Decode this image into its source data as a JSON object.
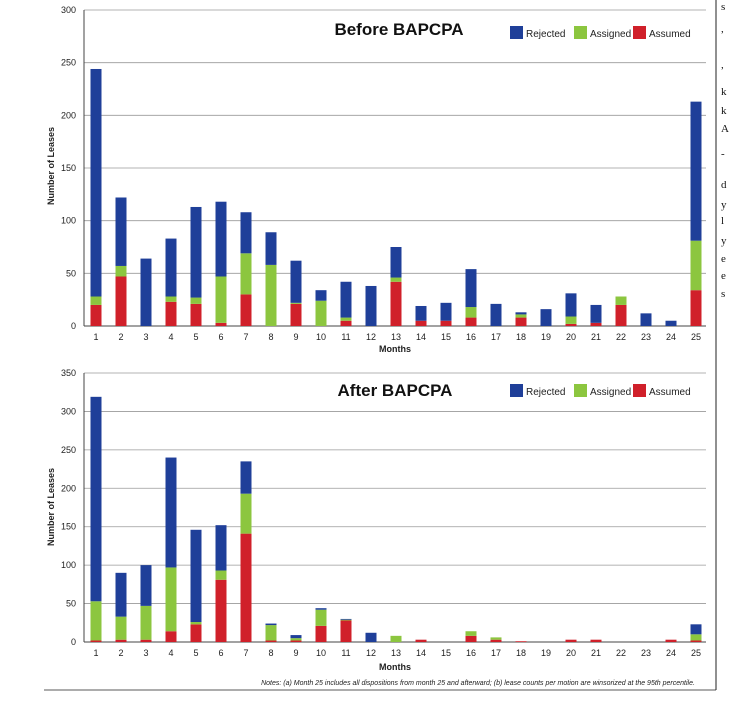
{
  "colors": {
    "rejected": "#1f3f99",
    "assigned": "#8cc63f",
    "assumed": "#d0202a"
  },
  "legend": [
    "Rejected",
    "Assigned",
    "Assumed"
  ],
  "footnote": "Notes: (a) Month 25 includes all dispositions from month 25 and afterward; (b) lease counts per motion are winsorized at the 95th percentile.",
  "margin_text": [
    "s",
    ",",
    ",",
    "k",
    "k",
    "A",
    "-",
    "d",
    "y",
    "l",
    "y",
    "e",
    "e",
    "s"
  ],
  "chart_data": [
    {
      "type": "bar",
      "stacked": true,
      "title": "Before BAPCPA",
      "xlabel": "Months",
      "ylabel": "Number of Leases",
      "ylim": [
        0,
        300
      ],
      "yticks": [
        0,
        50,
        100,
        150,
        200,
        250,
        300
      ],
      "categories": [
        "1",
        "2",
        "3",
        "4",
        "5",
        "6",
        "7",
        "8",
        "9",
        "10",
        "11",
        "12",
        "13",
        "14",
        "15",
        "16",
        "17",
        "18",
        "19",
        "20",
        "21",
        "22",
        "23",
        "24",
        "25"
      ],
      "series": [
        {
          "name": "Assumed",
          "values": [
            20,
            47,
            0,
            23,
            21,
            3,
            30,
            0,
            21,
            0,
            5,
            0,
            42,
            5,
            5,
            8,
            0,
            8,
            0,
            2,
            3,
            20,
            0,
            0,
            34
          ]
        },
        {
          "name": "Assigned",
          "values": [
            8,
            10,
            0,
            5,
            6,
            44,
            39,
            58,
            1,
            24,
            3,
            0,
            4,
            0,
            0,
            10,
            0,
            3,
            0,
            7,
            0,
            8,
            0,
            0,
            47
          ]
        },
        {
          "name": "Rejected",
          "values": [
            216,
            65,
            64,
            55,
            86,
            71,
            39,
            31,
            40,
            10,
            34,
            38,
            29,
            14,
            17,
            36,
            21,
            2,
            16,
            22,
            17,
            0,
            12,
            5,
            132
          ]
        }
      ]
    },
    {
      "type": "bar",
      "stacked": true,
      "title": "After BAPCPA",
      "xlabel": "Months",
      "ylabel": "Number of Leases",
      "ylim": [
        0,
        350
      ],
      "yticks": [
        0,
        50,
        100,
        150,
        200,
        250,
        300,
        350
      ],
      "categories": [
        "1",
        "2",
        "3",
        "4",
        "5",
        "6",
        "7",
        "8",
        "9",
        "10",
        "11",
        "12",
        "13",
        "14",
        "15",
        "16",
        "17",
        "18",
        "19",
        "20",
        "21",
        "22",
        "23",
        "24",
        "25"
      ],
      "series": [
        {
          "name": "Assumed",
          "values": [
            2,
            3,
            3,
            14,
            23,
            81,
            141,
            2,
            2,
            21,
            28,
            0,
            0,
            3,
            0,
            8,
            3,
            1,
            0,
            3,
            3,
            0,
            0,
            3,
            2
          ]
        },
        {
          "name": "Assigned",
          "values": [
            51,
            30,
            44,
            83,
            3,
            12,
            52,
            20,
            3,
            21,
            1,
            0,
            8,
            0,
            0,
            6,
            3,
            0,
            0,
            0,
            0,
            0,
            0,
            0,
            8
          ]
        },
        {
          "name": "Rejected",
          "values": [
            266,
            57,
            53,
            143,
            120,
            59,
            42,
            2,
            4,
            2,
            1,
            12,
            0,
            0,
            0,
            0,
            0,
            0,
            0,
            0,
            0,
            0,
            0,
            0,
            13
          ]
        }
      ]
    }
  ]
}
